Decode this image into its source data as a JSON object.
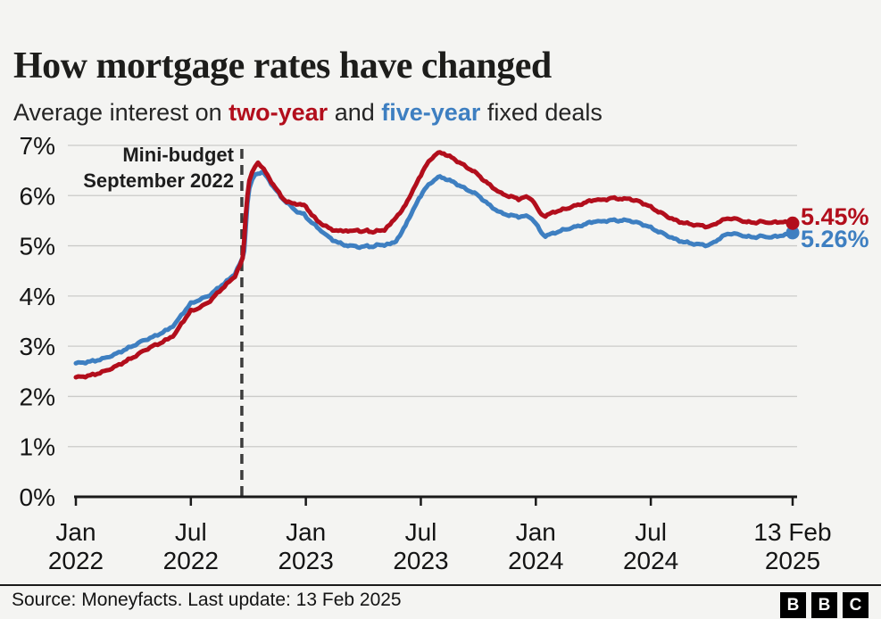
{
  "header": {
    "title": "How mortgage rates have changed",
    "subtitle": {
      "prefix": "Average interest on ",
      "two_year": "two-year",
      "and": " and ",
      "five_year": "five-year",
      "suffix": " fixed deals"
    }
  },
  "chart_data": {
    "type": "line",
    "title": "How mortgage rates have changed",
    "subtitle": "Average interest on two-year and five-year fixed deals",
    "xlabel": "",
    "ylabel": "",
    "ylim": [
      0,
      7
    ],
    "xlim_months_from_jan_2022": [
      0,
      37.4
    ],
    "grid": true,
    "legend_position": "inline-end-labels",
    "colors": {
      "background": "#f4f4f2",
      "grid": "#cbcbc9",
      "axis": "#1a1a1a",
      "tick_text": "#141414",
      "annotation_line": "#3c3c3c"
    },
    "y_ticks": [
      {
        "value": 0,
        "label": "0%"
      },
      {
        "value": 1,
        "label": "1%"
      },
      {
        "value": 2,
        "label": "2%"
      },
      {
        "value": 3,
        "label": "3%"
      },
      {
        "value": 4,
        "label": "4%"
      },
      {
        "value": 5,
        "label": "5%"
      },
      {
        "value": 6,
        "label": "6%"
      },
      {
        "value": 7,
        "label": "7%"
      }
    ],
    "x_ticks": [
      {
        "month": 0,
        "line1": "Jan",
        "line2": "2022"
      },
      {
        "month": 6,
        "line1": "Jul",
        "line2": "2022"
      },
      {
        "month": 12,
        "line1": "Jan",
        "line2": "2023"
      },
      {
        "month": 18,
        "line1": "Jul",
        "line2": "2023"
      },
      {
        "month": 24,
        "line1": "Jan",
        "line2": "2024"
      },
      {
        "month": 30,
        "line1": "Jul",
        "line2": "2024"
      },
      {
        "month": 37.4,
        "line1": "13 Feb",
        "line2": "2025"
      }
    ],
    "annotation": {
      "line1": "Mini-budget",
      "line2": "September 2022",
      "month": 8.66
    },
    "series": [
      {
        "name": "two-year",
        "color": "#b20e1c",
        "end_label": "5.45%",
        "end_value": 5.45,
        "points": [
          [
            0,
            2.38
          ],
          [
            0.5,
            2.4
          ],
          [
            1,
            2.44
          ],
          [
            1.5,
            2.5
          ],
          [
            2,
            2.58
          ],
          [
            2.5,
            2.68
          ],
          [
            3,
            2.78
          ],
          [
            3.5,
            2.9
          ],
          [
            4,
            3.0
          ],
          [
            4.4,
            3.06
          ],
          [
            4.8,
            3.14
          ],
          [
            5.2,
            3.25
          ],
          [
            5.5,
            3.45
          ],
          [
            6,
            3.7
          ],
          [
            6.3,
            3.74
          ],
          [
            6.6,
            3.8
          ],
          [
            7,
            3.9
          ],
          [
            7.5,
            4.1
          ],
          [
            8,
            4.28
          ],
          [
            8.3,
            4.4
          ],
          [
            8.55,
            4.6
          ],
          [
            8.7,
            4.74
          ],
          [
            8.78,
            5.1
          ],
          [
            8.85,
            5.55
          ],
          [
            8.95,
            6.0
          ],
          [
            9.05,
            6.3
          ],
          [
            9.2,
            6.45
          ],
          [
            9.35,
            6.58
          ],
          [
            9.5,
            6.66
          ],
          [
            9.65,
            6.6
          ],
          [
            9.8,
            6.52
          ],
          [
            10,
            6.4
          ],
          [
            10.2,
            6.28
          ],
          [
            10.4,
            6.16
          ],
          [
            10.6,
            6.05
          ],
          [
            10.8,
            5.95
          ],
          [
            11,
            5.88
          ],
          [
            11.2,
            5.85
          ],
          [
            11.5,
            5.84
          ],
          [
            11.8,
            5.81
          ],
          [
            12,
            5.79
          ],
          [
            12.3,
            5.62
          ],
          [
            12.6,
            5.5
          ],
          [
            12.9,
            5.42
          ],
          [
            13.2,
            5.35
          ],
          [
            13.5,
            5.31
          ],
          [
            13.8,
            5.29
          ],
          [
            14.1,
            5.31
          ],
          [
            14.4,
            5.28
          ],
          [
            14.7,
            5.33
          ],
          [
            14.9,
            5.27
          ],
          [
            15.2,
            5.31
          ],
          [
            15.5,
            5.27
          ],
          [
            15.8,
            5.3
          ],
          [
            16.1,
            5.32
          ],
          [
            16.4,
            5.42
          ],
          [
            16.7,
            5.58
          ],
          [
            17,
            5.68
          ],
          [
            17.3,
            5.9
          ],
          [
            17.6,
            6.1
          ],
          [
            17.9,
            6.35
          ],
          [
            18.2,
            6.55
          ],
          [
            18.5,
            6.72
          ],
          [
            18.8,
            6.83
          ],
          [
            19,
            6.85
          ],
          [
            19.2,
            6.84
          ],
          [
            19.5,
            6.78
          ],
          [
            19.8,
            6.71
          ],
          [
            20.1,
            6.64
          ],
          [
            20.4,
            6.56
          ],
          [
            20.7,
            6.5
          ],
          [
            21,
            6.41
          ],
          [
            21.3,
            6.3
          ],
          [
            21.6,
            6.21
          ],
          [
            21.9,
            6.12
          ],
          [
            22.2,
            6.04
          ],
          [
            22.5,
            6.0
          ],
          [
            22.8,
            5.97
          ],
          [
            23.1,
            5.93
          ],
          [
            23.4,
            5.97
          ],
          [
            23.7,
            5.95
          ],
          [
            23.9,
            5.88
          ],
          [
            24.1,
            5.72
          ],
          [
            24.3,
            5.62
          ],
          [
            24.5,
            5.6
          ],
          [
            24.7,
            5.63
          ],
          [
            25,
            5.68
          ],
          [
            25.3,
            5.71
          ],
          [
            25.6,
            5.74
          ],
          [
            25.9,
            5.78
          ],
          [
            26.2,
            5.81
          ],
          [
            26.5,
            5.85
          ],
          [
            26.8,
            5.89
          ],
          [
            27.1,
            5.92
          ],
          [
            27.4,
            5.91
          ],
          [
            27.7,
            5.93
          ],
          [
            28,
            5.95
          ],
          [
            28.3,
            5.94
          ],
          [
            28.6,
            5.93
          ],
          [
            28.9,
            5.94
          ],
          [
            29.1,
            5.91
          ],
          [
            29.4,
            5.88
          ],
          [
            29.7,
            5.83
          ],
          [
            30,
            5.77
          ],
          [
            30.3,
            5.7
          ],
          [
            30.6,
            5.64
          ],
          [
            30.9,
            5.58
          ],
          [
            31.2,
            5.52
          ],
          [
            31.5,
            5.48
          ],
          [
            31.8,
            5.45
          ],
          [
            32.1,
            5.43
          ],
          [
            32.4,
            5.41
          ],
          [
            32.7,
            5.4
          ],
          [
            33,
            5.38
          ],
          [
            33.3,
            5.42
          ],
          [
            33.6,
            5.49
          ],
          [
            33.9,
            5.53
          ],
          [
            34.2,
            5.55
          ],
          [
            34.5,
            5.53
          ],
          [
            34.8,
            5.49
          ],
          [
            35.1,
            5.47
          ],
          [
            35.4,
            5.46
          ],
          [
            35.7,
            5.48
          ],
          [
            36,
            5.47
          ],
          [
            36.3,
            5.46
          ],
          [
            36.6,
            5.47
          ],
          [
            36.9,
            5.48
          ],
          [
            37.15,
            5.46
          ],
          [
            37.4,
            5.45
          ]
        ]
      },
      {
        "name": "five-year",
        "color": "#3e7fc1",
        "end_label": "5.26%",
        "end_value": 5.26,
        "points": [
          [
            0,
            2.66
          ],
          [
            0.5,
            2.68
          ],
          [
            1,
            2.71
          ],
          [
            1.5,
            2.76
          ],
          [
            2,
            2.83
          ],
          [
            2.5,
            2.92
          ],
          [
            3,
            3.01
          ],
          [
            3.5,
            3.11
          ],
          [
            4,
            3.18
          ],
          [
            4.4,
            3.25
          ],
          [
            4.8,
            3.33
          ],
          [
            5.2,
            3.45
          ],
          [
            5.5,
            3.62
          ],
          [
            6,
            3.85
          ],
          [
            6.3,
            3.9
          ],
          [
            6.6,
            3.95
          ],
          [
            7,
            4.02
          ],
          [
            7.5,
            4.18
          ],
          [
            8,
            4.33
          ],
          [
            8.3,
            4.45
          ],
          [
            8.55,
            4.63
          ],
          [
            8.7,
            4.75
          ],
          [
            8.78,
            4.9
          ],
          [
            8.85,
            5.3
          ],
          [
            8.95,
            5.85
          ],
          [
            9.05,
            6.15
          ],
          [
            9.2,
            6.3
          ],
          [
            9.35,
            6.42
          ],
          [
            9.5,
            6.44
          ],
          [
            9.7,
            6.47
          ],
          [
            9.9,
            6.4
          ],
          [
            10.1,
            6.3
          ],
          [
            10.3,
            6.18
          ],
          [
            10.5,
            6.08
          ],
          [
            10.7,
            5.98
          ],
          [
            10.9,
            5.9
          ],
          [
            11.1,
            5.83
          ],
          [
            11.4,
            5.72
          ],
          [
            11.7,
            5.65
          ],
          [
            11.9,
            5.63
          ],
          [
            12.2,
            5.5
          ],
          [
            12.5,
            5.4
          ],
          [
            12.8,
            5.3
          ],
          [
            13.1,
            5.2
          ],
          [
            13.4,
            5.12
          ],
          [
            13.7,
            5.06
          ],
          [
            14,
            5.02
          ],
          [
            14.3,
            5.0
          ],
          [
            14.6,
            4.99
          ],
          [
            14.9,
            4.97
          ],
          [
            15.2,
            5.0
          ],
          [
            15.5,
            4.98
          ],
          [
            15.8,
            5.02
          ],
          [
            16.1,
            5.02
          ],
          [
            16.4,
            5.03
          ],
          [
            16.7,
            5.1
          ],
          [
            17,
            5.25
          ],
          [
            17.3,
            5.5
          ],
          [
            17.6,
            5.7
          ],
          [
            17.9,
            5.95
          ],
          [
            18.2,
            6.12
          ],
          [
            18.5,
            6.25
          ],
          [
            18.8,
            6.34
          ],
          [
            19,
            6.37
          ],
          [
            19.2,
            6.35
          ],
          [
            19.5,
            6.3
          ],
          [
            19.8,
            6.25
          ],
          [
            20.1,
            6.18
          ],
          [
            20.4,
            6.12
          ],
          [
            20.7,
            6.07
          ],
          [
            21,
            6.0
          ],
          [
            21.3,
            5.9
          ],
          [
            21.6,
            5.8
          ],
          [
            21.9,
            5.72
          ],
          [
            22.2,
            5.65
          ],
          [
            22.5,
            5.62
          ],
          [
            22.8,
            5.6
          ],
          [
            23.1,
            5.58
          ],
          [
            23.4,
            5.59
          ],
          [
            23.7,
            5.57
          ],
          [
            23.9,
            5.5
          ],
          [
            24.1,
            5.38
          ],
          [
            24.3,
            5.25
          ],
          [
            24.5,
            5.2
          ],
          [
            24.7,
            5.22
          ],
          [
            25,
            5.26
          ],
          [
            25.3,
            5.3
          ],
          [
            25.6,
            5.33
          ],
          [
            25.9,
            5.36
          ],
          [
            26.2,
            5.39
          ],
          [
            26.5,
            5.42
          ],
          [
            26.8,
            5.46
          ],
          [
            27.1,
            5.49
          ],
          [
            27.4,
            5.48
          ],
          [
            27.7,
            5.5
          ],
          [
            28,
            5.51
          ],
          [
            28.3,
            5.5
          ],
          [
            28.6,
            5.51
          ],
          [
            28.9,
            5.5
          ],
          [
            29.1,
            5.48
          ],
          [
            29.4,
            5.45
          ],
          [
            29.7,
            5.41
          ],
          [
            30,
            5.36
          ],
          [
            30.3,
            5.3
          ],
          [
            30.6,
            5.25
          ],
          [
            30.9,
            5.2
          ],
          [
            31.2,
            5.14
          ],
          [
            31.5,
            5.1
          ],
          [
            31.8,
            5.07
          ],
          [
            32.1,
            5.05
          ],
          [
            32.4,
            5.03
          ],
          [
            32.7,
            5.02
          ],
          [
            33,
            5.01
          ],
          [
            33.3,
            5.07
          ],
          [
            33.6,
            5.15
          ],
          [
            33.9,
            5.22
          ],
          [
            34.2,
            5.25
          ],
          [
            34.5,
            5.23
          ],
          [
            34.8,
            5.2
          ],
          [
            35.1,
            5.18
          ],
          [
            35.4,
            5.17
          ],
          [
            35.7,
            5.19
          ],
          [
            36,
            5.18
          ],
          [
            36.3,
            5.17
          ],
          [
            36.6,
            5.19
          ],
          [
            36.9,
            5.21
          ],
          [
            37.15,
            5.23
          ],
          [
            37.4,
            5.26
          ]
        ]
      }
    ]
  },
  "footer": {
    "source": "Source: Moneyfacts. Last update: 13 Feb 2025",
    "logo": [
      "B",
      "B",
      "C"
    ]
  }
}
